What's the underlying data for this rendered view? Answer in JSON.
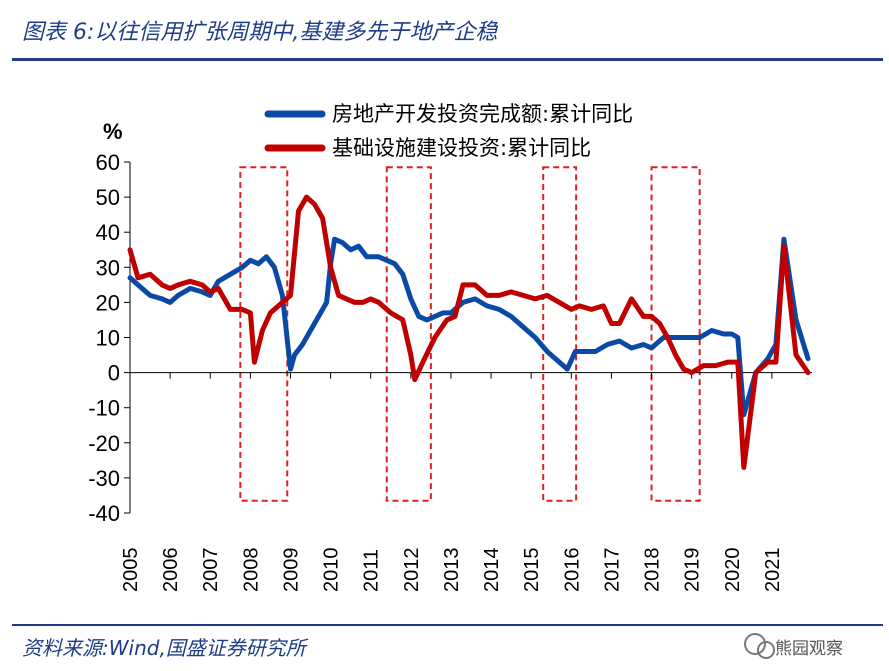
{
  "header": {
    "figure_title": "图表 6:以往信用扩张周期中,基建多先于地产企稳"
  },
  "footer": {
    "source": "资料来源:Wind,国盛证券研究所",
    "watermark": "熊园观察"
  },
  "chart_data": {
    "type": "line",
    "title": "",
    "ylabel": "%",
    "ylim": [
      -40,
      60
    ],
    "yticks": [
      "60",
      "50",
      "40",
      "30",
      "20",
      "10",
      "0",
      "-10",
      "-20",
      "-30",
      "-40"
    ],
    "xlim": [
      2005.0,
      2022.0
    ],
    "xticks": [
      "2005",
      "2006",
      "2007",
      "2008",
      "2009",
      "2010",
      "2011",
      "2012",
      "2013",
      "2014",
      "2015",
      "2016",
      "2017",
      "2018",
      "2019",
      "2020",
      "2021"
    ],
    "colors": {
      "realestate": "#0a4aa6",
      "infrastructure": "#c00000",
      "highlight": "#e02020",
      "axis": "#000000"
    },
    "highlight_periods": [
      [
        2007.75,
        2008.92
      ],
      [
        2011.4,
        2012.5
      ],
      [
        2015.3,
        2016.12
      ],
      [
        2018.0,
        2019.2
      ]
    ],
    "series": [
      {
        "name": "房地产开发投资完成额:累计同比",
        "x": [
          2005.0,
          2005.2,
          2005.5,
          2005.8,
          2006.0,
          2006.2,
          2006.5,
          2006.8,
          2007.0,
          2007.2,
          2007.5,
          2007.8,
          2008.0,
          2008.2,
          2008.4,
          2008.6,
          2008.8,
          2009.0,
          2009.1,
          2009.3,
          2009.5,
          2009.7,
          2009.9,
          2010.0,
          2010.1,
          2010.3,
          2010.5,
          2010.7,
          2010.9,
          2011.2,
          2011.4,
          2011.6,
          2011.8,
          2012.0,
          2012.2,
          2012.4,
          2012.6,
          2012.8,
          2013.0,
          2013.3,
          2013.6,
          2013.9,
          2014.2,
          2014.5,
          2014.8,
          2015.1,
          2015.4,
          2015.7,
          2015.9,
          2016.1,
          2016.3,
          2016.6,
          2016.9,
          2017.2,
          2017.5,
          2017.8,
          2018.0,
          2018.3,
          2018.6,
          2018.9,
          2019.2,
          2019.5,
          2019.8,
          2020.0,
          2020.15,
          2020.3,
          2020.6,
          2020.9,
          2021.0,
          2021.1,
          2021.3,
          2021.6,
          2021.9
        ],
        "values": [
          27,
          25,
          22,
          21,
          20,
          22,
          24,
          23,
          22,
          26,
          28,
          30,
          32,
          31,
          33,
          30,
          22,
          1,
          5,
          8,
          12,
          16,
          20,
          31,
          38,
          37,
          35,
          36,
          33,
          33,
          32,
          31,
          28,
          21,
          16,
          15,
          16,
          17,
          17,
          20,
          21,
          19,
          18,
          16,
          13,
          10,
          6,
          3,
          1,
          6,
          6,
          6,
          8,
          9,
          7,
          8,
          7,
          10,
          10,
          10,
          10,
          12,
          11,
          11,
          10,
          -12,
          0,
          4,
          6,
          8,
          38,
          15,
          4
        ]
      },
      {
        "name": "基础设施建设投资:累计同比",
        "x": [
          2005.0,
          2005.2,
          2005.5,
          2005.8,
          2006.0,
          2006.2,
          2006.5,
          2006.8,
          2007.0,
          2007.2,
          2007.5,
          2007.8,
          2008.0,
          2008.1,
          2008.3,
          2008.5,
          2008.8,
          2009.0,
          2009.2,
          2009.4,
          2009.6,
          2009.8,
          2010.0,
          2010.2,
          2010.4,
          2010.6,
          2010.8,
          2011.0,
          2011.2,
          2011.5,
          2011.8,
          2012.0,
          2012.1,
          2012.3,
          2012.6,
          2012.9,
          2013.1,
          2013.3,
          2013.6,
          2013.9,
          2014.2,
          2014.5,
          2014.8,
          2015.1,
          2015.4,
          2015.7,
          2016.0,
          2016.2,
          2016.5,
          2016.8,
          2017.0,
          2017.2,
          2017.5,
          2017.8,
          2018.0,
          2018.2,
          2018.4,
          2018.6,
          2018.8,
          2019.0,
          2019.3,
          2019.6,
          2019.9,
          2020.0,
          2020.15,
          2020.3,
          2020.6,
          2020.9,
          2021.0,
          2021.1,
          2021.3,
          2021.6,
          2021.9
        ],
        "values": [
          35,
          27,
          28,
          25,
          24,
          25,
          26,
          25,
          23,
          24,
          18,
          18,
          17,
          3,
          12,
          17,
          20,
          22,
          46,
          50,
          48,
          44,
          30,
          22,
          21,
          20,
          20,
          21,
          20,
          17,
          15,
          5,
          -2,
          3,
          10,
          15,
          16,
          25,
          25,
          22,
          22,
          23,
          22,
          21,
          22,
          20,
          18,
          19,
          18,
          19,
          14,
          14,
          21,
          16,
          16,
          14,
          10,
          5,
          1,
          0,
          2,
          2,
          3,
          3,
          3,
          -27,
          0,
          3,
          3,
          3,
          36,
          5,
          0
        ]
      }
    ]
  }
}
